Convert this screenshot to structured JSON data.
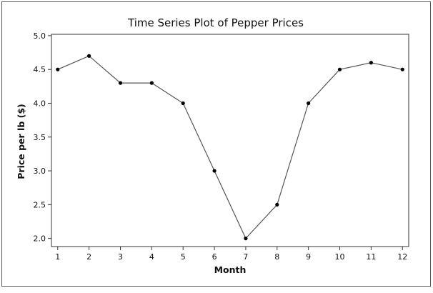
{
  "chart_data": {
    "type": "line",
    "title": "Time Series Plot of Pepper Prices",
    "xlabel": "Month",
    "ylabel": "Price per lb ($)",
    "x": [
      1,
      2,
      3,
      4,
      5,
      6,
      7,
      8,
      9,
      10,
      11,
      12
    ],
    "values": [
      4.5,
      4.7,
      4.3,
      4.3,
      4.0,
      3.0,
      2.0,
      2.5,
      4.0,
      4.5,
      4.6,
      4.5
    ],
    "xlim": [
      0.8,
      12.2
    ],
    "ylim": [
      1.88,
      5.02
    ],
    "x_ticks": [
      1,
      2,
      3,
      4,
      5,
      6,
      7,
      8,
      9,
      10,
      11,
      12
    ],
    "x_tick_labels": [
      "1",
      "2",
      "3",
      "4",
      "5",
      "6",
      "7",
      "8",
      "9",
      "10",
      "11",
      "12"
    ],
    "y_ticks": [
      2.0,
      2.5,
      3.0,
      3.5,
      4.0,
      4.5,
      5.0
    ],
    "y_tick_labels": [
      "2.0",
      "2.5",
      "3.0",
      "3.5",
      "4.0",
      "4.5",
      "5.0"
    ],
    "grid": false,
    "line_color": "#555555",
    "marker_color": "#000000"
  }
}
